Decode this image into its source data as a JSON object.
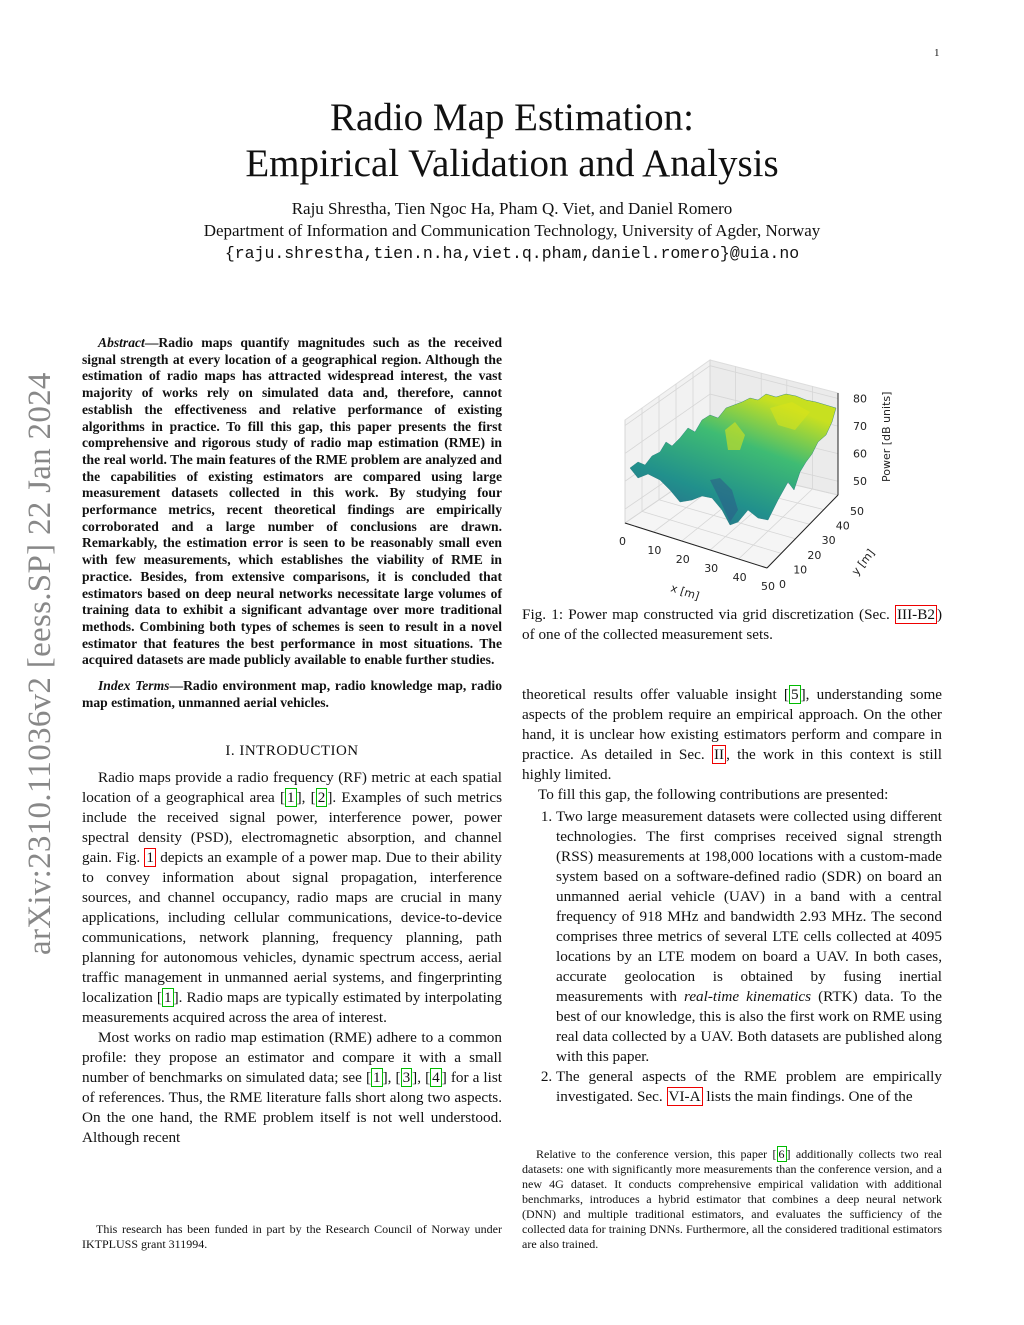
{
  "page_number": "1",
  "title_line1": "Radio Map Estimation:",
  "title_line2": "Empirical Validation and Analysis",
  "authors": "Raju Shrestha, Tien Ngoc Ha, Pham Q. Viet, and Daniel Romero",
  "affiliation": "Department of Information and Communication Technology, University of Agder, Norway",
  "emails": "{raju.shrestha,tien.n.ha,viet.q.pham,daniel.romero}@uia.no",
  "arxiv_stamp": "arXiv:2310.11036v2  [eess.SP]  22 Jan 2024",
  "abstract": {
    "label": "Abstract",
    "text": "—Radio maps quantify magnitudes such as the received signal strength at every location of a geographical region. Although the estimation of radio maps has attracted widespread interest, the vast majority of works rely on simulated data and, therefore, cannot establish the effectiveness and relative performance of existing algorithms in practice. To fill this gap, this paper presents the first comprehensive and rigorous study of radio map estimation (RME) in the real world. The main features of the RME problem are analyzed and the capabilities of existing estimators are compared using large measurement datasets collected in this work. By studying four performance metrics, recent theoretical findings are empirically corroborated and a large number of conclusions are drawn. Remarkably, the estimation error is seen to be reasonably small even with few measurements, which establishes the viability of RME in practice. Besides, from extensive comparisons, it is concluded that estimators based on deep neural networks necessitate large volumes of training data to exhibit a significant advantage over more traditional methods. Combining both types of schemes is seen to result in a novel estimator that features the best performance in most situations. The acquired datasets are made publicly available to enable further studies.",
    "index_label": "Index Terms",
    "index_text": "—Radio environment map, radio knowledge map, radio map estimation, unmanned aerial vehicles."
  },
  "section1": {
    "heading": "I. INTRODUCTION",
    "p1": "Radio maps provide a radio frequency (RF) metric at each spatial location of a geographical area [1], [2]. Examples of such metrics include the received signal power, interference power, power spectral density (PSD), electromagnetic absorption, and channel gain. Fig. {1} depicts an example of a power map. Due to their ability to convey information about signal propagation, interference sources, and channel occupancy, radio maps are crucial in many applications, including cellular communications, device-to-device communications, network planning, frequency planning, path planning for autonomous vehicles, dynamic spectrum access, aerial traffic management in unmanned aerial systems, and fingerprinting localization [1]. Radio maps are typically estimated by interpolating measurements acquired across the area of interest.",
    "p2": "Most works on radio map estimation (RME) adhere to a common profile: they propose an estimator and compare it with a small number of benchmarks on simulated data; see [1], [3], [4] for a list of references. Thus, the RME literature falls short along two aspects. On the one hand, the RME problem itself is not well understood. Although recent",
    "p3": "theoretical results offer valuable insight [5], understanding some aspects of the problem require an empirical approach. On the other hand, it is unclear how existing estimators perform and compare in practice. As detailed in Sec. {II}, the work in this context is still highly limited.",
    "p4": "To fill this gap, the following contributions are presented:",
    "contributions": [
      "Two large measurement datasets were collected using different technologies. The first comprises received signal strength (RSS) measurements at 198,000 locations with a custom-made system based on a software-defined radio (SDR) on board an unmanned aerial vehicle (UAV) in a band with a central frequency of 918 MHz and bandwidth 2.93 MHz. The second comprises three metrics of several LTE cells collected at 4095 locations by an LTE modem on board a UAV. In both cases, accurate geolocation is obtained by fusing inertial measurements with real-time kinematics (RTK) data. To the best of our knowledge, this is also the first work on RME using real data collected by a UAV. Both datasets are published along with this paper.",
      "The general aspects of the RME problem are empirically investigated. Sec. {VI-A} lists the main findings. One of the"
    ]
  },
  "figure1": {
    "caption": "Fig. 1: Power map constructed via grid discretization (Sec. {III-B2}) of one of the collected measurement sets.",
    "chart_data": {
      "type": "surface3d",
      "xlabel": "x [m]",
      "ylabel": "y [m]",
      "zlabel": "Power [dB units]",
      "x_ticks": [
        "0",
        "10",
        "20",
        "30",
        "40",
        "50"
      ],
      "y_ticks": [
        "0",
        "10",
        "20",
        "30",
        "40",
        "50"
      ],
      "z_ticks": [
        "50",
        "60",
        "70",
        "80"
      ],
      "xlim": [
        0,
        50
      ],
      "ylim": [
        0,
        50
      ],
      "zlim": [
        45,
        82
      ],
      "colormap": "viridis",
      "grid": true
    }
  },
  "footnote_left": "This research has been funded in part by the Research Council of Norway under IKTPLUSS grant 311994.",
  "footnote_right": "Relative to the conference version, this paper [6] additionally collects two real datasets: one with significantly more measurements than the conference version, and a new 4G dataset. It conducts comprehensive empirical validation with additional benchmarks, introduces a hybrid estimator that combines a deep neural network (DNN) and multiple traditional estimators, and evaluates the sufficiency of the collected data for training DNNs. Furthermore, all the considered traditional estimators are also trained."
}
